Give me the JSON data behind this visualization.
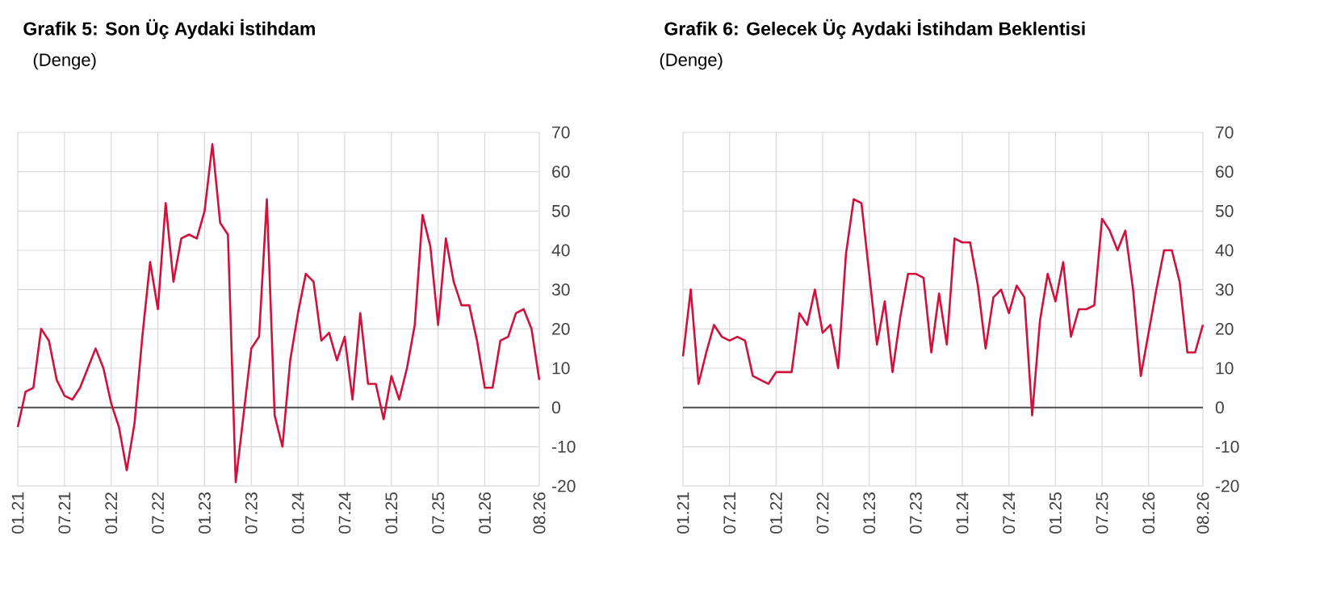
{
  "chart_data": [
    {
      "type": "line",
      "title": "Grafik 5: Son Üç Aydaki İstihdam",
      "subtitle": "(Denge)",
      "categories": [
        "01.21",
        null,
        null,
        null,
        null,
        null,
        "07.21",
        null,
        null,
        null,
        null,
        null,
        "01.22",
        null,
        null,
        null,
        null,
        null,
        "07.22",
        null,
        null,
        null,
        null,
        null,
        "01.23",
        null,
        null,
        null,
        null,
        null,
        "07.23",
        null,
        null,
        null,
        null,
        null,
        "01.24",
        null,
        null,
        null,
        null,
        null,
        "07.24",
        null,
        null,
        null,
        null,
        null,
        "01.25",
        null,
        null,
        null,
        null,
        null,
        "07.25",
        null,
        null,
        null,
        null,
        null,
        "01.26",
        null,
        null,
        null,
        null,
        null,
        null,
        "08.26"
      ],
      "series": [
        {
          "color": "#d2103c",
          "values": [
            -5,
            4,
            5,
            20,
            17,
            7,
            3,
            2,
            5,
            10,
            15,
            10,
            1,
            -5,
            -16,
            -4,
            18,
            37,
            25,
            52,
            32,
            43,
            44,
            43,
            50,
            67,
            47,
            44,
            -19,
            -2,
            15,
            18,
            53,
            -2,
            -10,
            12,
            24,
            34,
            32,
            17,
            19,
            12,
            18,
            2,
            24,
            6,
            6,
            -3,
            8,
            2,
            10,
            21,
            49,
            41,
            21,
            43,
            32,
            26,
            26,
            17,
            5,
            5,
            17,
            18,
            24,
            25,
            20,
            7
          ]
        }
      ],
      "ylim": [
        -20,
        70
      ],
      "yticks": [
        -20,
        -10,
        0,
        10,
        20,
        30,
        40,
        50,
        60,
        70
      ],
      "grid": true,
      "marker": "none",
      "line_style": "solid",
      "ref_lines": [
        {
          "axis": "y",
          "value": 0
        }
      ]
    },
    {
      "type": "line",
      "title": "Grafik 6: Gelecek Üç Aydaki İstihdam Beklentisi",
      "subtitle": "(Denge)",
      "categories": [
        "01.21",
        null,
        null,
        null,
        null,
        null,
        "07.21",
        null,
        null,
        null,
        null,
        null,
        "01.22",
        null,
        null,
        null,
        null,
        null,
        "07.22",
        null,
        null,
        null,
        null,
        null,
        "01.23",
        null,
        null,
        null,
        null,
        null,
        "07.23",
        null,
        null,
        null,
        null,
        null,
        "01.24",
        null,
        null,
        null,
        null,
        null,
        "07.24",
        null,
        null,
        null,
        null,
        null,
        "01.25",
        null,
        null,
        null,
        null,
        null,
        "07.25",
        null,
        null,
        null,
        null,
        null,
        "01.26",
        null,
        null,
        null,
        null,
        null,
        null,
        "08.26"
      ],
      "series": [
        {
          "color": "#d2103c",
          "values": [
            13,
            30,
            6,
            14,
            21,
            18,
            17,
            18,
            17,
            8,
            7,
            6,
            9,
            9,
            9,
            24,
            21,
            30,
            19,
            21,
            10,
            39,
            53,
            52,
            34,
            16,
            27,
            9,
            23,
            34,
            34,
            33,
            14,
            29,
            16,
            43,
            42,
            42,
            31,
            15,
            28,
            30,
            24,
            31,
            28,
            -2,
            22,
            34,
            27,
            37,
            18,
            25,
            25,
            26,
            48,
            45,
            40,
            45,
            30,
            8,
            19,
            30,
            40,
            40,
            32,
            14,
            14,
            21
          ]
        }
      ],
      "ylim": [
        -20,
        70
      ],
      "yticks": [
        -20,
        -10,
        0,
        10,
        20,
        30,
        40,
        50,
        60,
        70
      ],
      "grid": true,
      "marker": "none",
      "line_style": "solid",
      "ref_lines": [
        {
          "axis": "y",
          "value": 0
        }
      ]
    }
  ]
}
